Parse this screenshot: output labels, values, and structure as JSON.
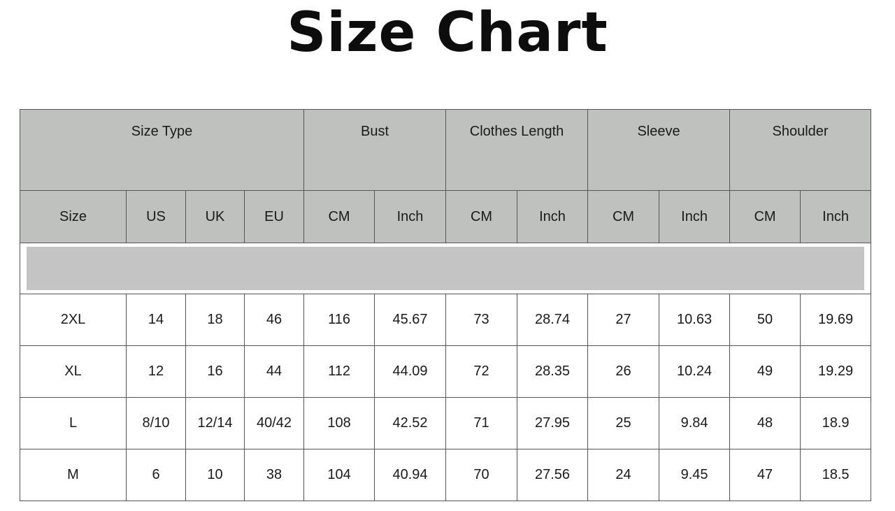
{
  "title": "Size Chart",
  "groups": [
    "Size Type",
    "Bust",
    "Clothes Length",
    "Sleeve",
    "Shoulder"
  ],
  "columns": [
    "Size",
    "US",
    "UK",
    "EU",
    "CM",
    "Inch",
    "CM",
    "Inch",
    "CM",
    "Inch",
    "CM",
    "Inch"
  ],
  "rows": [
    [
      "2XL",
      "14",
      "18",
      "46",
      "116",
      "45.67",
      "73",
      "28.74",
      "27",
      "10.63",
      "50",
      "19.69"
    ],
    [
      "XL",
      "12",
      "16",
      "44",
      "112",
      "44.09",
      "72",
      "28.35",
      "26",
      "10.24",
      "49",
      "19.29"
    ],
    [
      "L",
      "8/10",
      "12/14",
      "40/42",
      "108",
      "42.52",
      "71",
      "27.95",
      "25",
      "9.84",
      "48",
      "18.9"
    ],
    [
      "M",
      "6",
      "10",
      "38",
      "104",
      "40.94",
      "70",
      "27.56",
      "24",
      "9.45",
      "47",
      "18.5"
    ]
  ],
  "colors": {
    "header_bg": "#bec1be",
    "separator_bar": "#c4c4c4",
    "border": "#555555"
  }
}
